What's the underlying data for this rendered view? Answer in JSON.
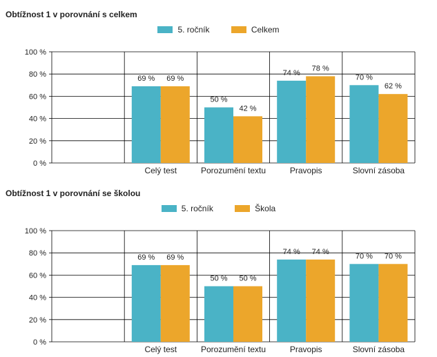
{
  "colors": {
    "series_a": "#4ab3c6",
    "series_b": "#eca62b",
    "grid": "#000000"
  },
  "chart_data": [
    {
      "type": "bar",
      "title": "Obtížnost 1 v porovnání s celkem",
      "categories": [
        "Celý test",
        "Porozumění textu",
        "Pravopis",
        "Slovní zásoba"
      ],
      "series": [
        {
          "name": "5. ročník",
          "values": [
            69,
            50,
            74,
            70
          ]
        },
        {
          "name": "Celkem",
          "values": [
            69,
            42,
            78,
            62
          ]
        }
      ],
      "ylim": [
        0,
        100
      ],
      "yticks": [
        "0 %",
        "20 %",
        "40 %",
        "60 %",
        "80 %",
        "100 %"
      ],
      "value_suffix": " %",
      "legend_position": "top",
      "grid": true
    },
    {
      "type": "bar",
      "title": "Obtížnost 1 v porovnání se školou",
      "categories": [
        "Celý test",
        "Porozumění textu",
        "Pravopis",
        "Slovní zásoba"
      ],
      "series": [
        {
          "name": "5. ročník",
          "values": [
            69,
            50,
            74,
            70
          ]
        },
        {
          "name": "Škola",
          "values": [
            69,
            50,
            74,
            70
          ]
        }
      ],
      "ylim": [
        0,
        100
      ],
      "yticks": [
        "0 %",
        "20 %",
        "40 %",
        "60 %",
        "80 %",
        "100 %"
      ],
      "value_suffix": " %",
      "legend_position": "top",
      "grid": true
    }
  ]
}
